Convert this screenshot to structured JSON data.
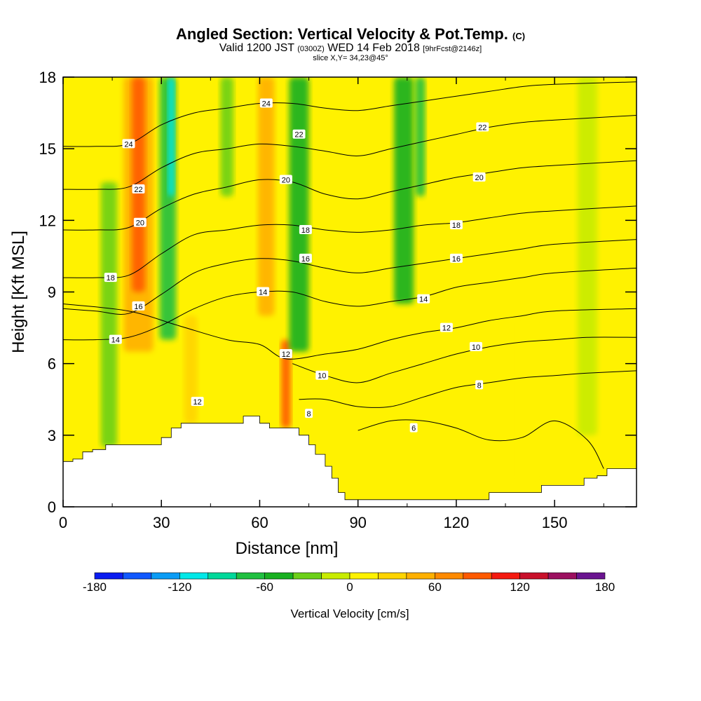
{
  "header": {
    "title": "Angled Section: Vertical Velocity & Pot.Temp.",
    "title_unit": "(C)",
    "valid_prefix": "Valid 1200 JST",
    "valid_utc": "(0300Z)",
    "valid_date": "WED 14 Feb 2018",
    "forecast": "[9hrFcst@2146z]",
    "slice": "slice X,Y= 34,23@45°"
  },
  "chart_data": {
    "type": "heatmap",
    "xlabel": "Distance [nm]",
    "ylabel": "Height [Kft MSL]",
    "xlim": [
      0,
      175
    ],
    "ylim": [
      0,
      18
    ],
    "x_ticks": [
      0,
      30,
      60,
      90,
      120,
      150
    ],
    "y_ticks": [
      0,
      3,
      6,
      9,
      12,
      15,
      18
    ],
    "grid": false,
    "colorbar": {
      "label": "Vertical Velocity [cm/s]",
      "ticks": [
        -180,
        -120,
        -60,
        0,
        60,
        120,
        180
      ],
      "bounds": [
        -180,
        180
      ],
      "colors": [
        "#0a1cf0",
        "#1058ff",
        "#0a9cf5",
        "#00e8e8",
        "#00d89a",
        "#20c040",
        "#18b020",
        "#6cd018",
        "#c8ec00",
        "#fff200",
        "#ffd400",
        "#ffb000",
        "#ff8a00",
        "#ff5a00",
        "#f41a10",
        "#c8102a",
        "#9c1060",
        "#6a1490"
      ]
    },
    "velocity_columns": [
      {
        "x": 14,
        "w": 5,
        "ybot": 2.5,
        "ytop": 13.6,
        "value": -30
      },
      {
        "x": 23,
        "w": 9,
        "ybot": 6.5,
        "ytop": 18,
        "value": 55
      },
      {
        "x": 23,
        "w": 4,
        "ybot": 9,
        "ytop": 18,
        "value": 90
      },
      {
        "x": 32,
        "w": 5,
        "ybot": 7,
        "ytop": 18,
        "value": -70
      },
      {
        "x": 33,
        "w": 2,
        "ybot": 13,
        "ytop": 18,
        "value": -110
      },
      {
        "x": 39,
        "w": 4,
        "ybot": 3.5,
        "ytop": 8,
        "value": 35
      },
      {
        "x": 50,
        "w": 4,
        "ybot": 13,
        "ytop": 18,
        "value": -35
      },
      {
        "x": 62,
        "w": 5,
        "ybot": 8,
        "ytop": 18,
        "value": 40
      },
      {
        "x": 68,
        "w": 3,
        "ybot": 3.3,
        "ytop": 7,
        "value": 80
      },
      {
        "x": 72,
        "w": 6,
        "ybot": 6.5,
        "ytop": 18,
        "value": -55
      },
      {
        "x": 104,
        "w": 6,
        "ybot": 8.5,
        "ytop": 18,
        "value": -45
      },
      {
        "x": 109,
        "w": 3,
        "ybot": 13,
        "ytop": 18,
        "value": -75
      },
      {
        "x": 120,
        "w": 6,
        "ybot": 0.5,
        "ytop": 12,
        "value": 15
      },
      {
        "x": 142,
        "w": 8,
        "ybot": 1,
        "ytop": 8,
        "value": 15
      },
      {
        "x": 160,
        "w": 6,
        "ybot": 3,
        "ytop": 18,
        "value": -15
      }
    ],
    "terrain": [
      [
        0,
        1.9
      ],
      [
        3,
        2.0
      ],
      [
        6,
        2.3
      ],
      [
        9,
        2.4
      ],
      [
        13,
        2.6
      ],
      [
        27,
        2.6
      ],
      [
        30,
        2.9
      ],
      [
        33,
        3.3
      ],
      [
        36,
        3.5
      ],
      [
        52,
        3.5
      ],
      [
        55,
        3.8
      ],
      [
        57,
        3.8
      ],
      [
        60,
        3.5
      ],
      [
        63,
        3.3
      ],
      [
        68,
        3.3
      ],
      [
        72,
        3.0
      ],
      [
        75,
        2.6
      ],
      [
        77,
        2.2
      ],
      [
        80,
        1.7
      ],
      [
        82,
        1.2
      ],
      [
        84,
        0.6
      ],
      [
        86,
        0.3
      ],
      [
        129,
        0.3
      ],
      [
        130,
        0.6
      ],
      [
        142,
        0.6
      ],
      [
        146,
        0.9
      ],
      [
        155,
        0.9
      ],
      [
        159,
        1.2
      ],
      [
        163,
        1.3
      ],
      [
        166,
        1.6
      ],
      [
        175,
        1.6
      ]
    ],
    "isentropes": [
      {
        "value": 6,
        "pts": [
          [
            90,
            3.2
          ],
          [
            100,
            3.6
          ],
          [
            110,
            3.6
          ],
          [
            120,
            3.3
          ],
          [
            130,
            2.8
          ],
          [
            140,
            2.9
          ],
          [
            150,
            3.6
          ],
          [
            160,
            2.8
          ],
          [
            165,
            1.6
          ]
        ]
      },
      {
        "value": 8,
        "pts": [
          [
            72,
            4.5
          ],
          [
            80,
            4.5
          ],
          [
            90,
            4.2
          ],
          [
            100,
            4.2
          ],
          [
            110,
            4.6
          ],
          [
            120,
            5.0
          ],
          [
            130,
            5.2
          ],
          [
            140,
            5.4
          ],
          [
            150,
            5.5
          ],
          [
            160,
            5.6
          ],
          [
            175,
            5.7
          ]
        ]
      },
      {
        "value": 10,
        "pts": [
          [
            70,
            6.0
          ],
          [
            80,
            5.5
          ],
          [
            90,
            5.2
          ],
          [
            100,
            5.6
          ],
          [
            110,
            6.0
          ],
          [
            120,
            6.4
          ],
          [
            130,
            6.7
          ],
          [
            140,
            6.9
          ],
          [
            150,
            7.0
          ],
          [
            160,
            7.1
          ],
          [
            175,
            7.1
          ]
        ]
      },
      {
        "value": 12,
        "pts": [
          [
            0,
            8.5
          ],
          [
            20,
            8.2
          ],
          [
            35,
            7.6
          ],
          [
            50,
            7.0
          ],
          [
            60,
            6.8
          ],
          [
            68,
            6.2
          ],
          [
            80,
            6.4
          ],
          [
            90,
            6.6
          ],
          [
            100,
            7.0
          ],
          [
            110,
            7.3
          ],
          [
            120,
            7.5
          ],
          [
            130,
            7.8
          ],
          [
            140,
            8.0
          ],
          [
            150,
            8.2
          ],
          [
            175,
            8.3
          ]
        ]
      },
      {
        "value": 14,
        "pts": [
          [
            0,
            7.0
          ],
          [
            10,
            7.0
          ],
          [
            20,
            7.1
          ],
          [
            30,
            7.6
          ],
          [
            40,
            8.3
          ],
          [
            50,
            8.8
          ],
          [
            60,
            9.0
          ],
          [
            70,
            9.0
          ],
          [
            80,
            8.6
          ],
          [
            90,
            8.4
          ],
          [
            100,
            8.6
          ],
          [
            110,
            8.8
          ],
          [
            120,
            9.2
          ],
          [
            130,
            9.4
          ],
          [
            140,
            9.6
          ],
          [
            150,
            9.8
          ],
          [
            175,
            10.0
          ]
        ]
      },
      {
        "value": 16,
        "pts": [
          [
            0,
            8.3
          ],
          [
            10,
            8.2
          ],
          [
            20,
            8.1
          ],
          [
            30,
            8.9
          ],
          [
            40,
            9.8
          ],
          [
            50,
            10.2
          ],
          [
            60,
            10.4
          ],
          [
            70,
            10.3
          ],
          [
            80,
            10.0
          ],
          [
            90,
            9.8
          ],
          [
            100,
            10.0
          ],
          [
            110,
            10.2
          ],
          [
            120,
            10.4
          ],
          [
            130,
            10.6
          ],
          [
            140,
            10.8
          ],
          [
            150,
            11.0
          ],
          [
            175,
            11.2
          ]
        ]
      },
      {
        "value": 18,
        "pts": [
          [
            0,
            9.6
          ],
          [
            10,
            9.6
          ],
          [
            20,
            9.7
          ],
          [
            30,
            10.6
          ],
          [
            40,
            11.4
          ],
          [
            50,
            11.6
          ],
          [
            60,
            11.8
          ],
          [
            70,
            11.8
          ],
          [
            80,
            11.6
          ],
          [
            90,
            11.5
          ],
          [
            100,
            11.6
          ],
          [
            110,
            11.8
          ],
          [
            120,
            11.9
          ],
          [
            130,
            12.1
          ],
          [
            140,
            12.3
          ],
          [
            150,
            12.4
          ],
          [
            175,
            12.6
          ]
        ]
      },
      {
        "value": 20,
        "pts": [
          [
            0,
            11.6
          ],
          [
            10,
            11.6
          ],
          [
            20,
            11.7
          ],
          [
            30,
            12.5
          ],
          [
            40,
            13.1
          ],
          [
            50,
            13.4
          ],
          [
            60,
            13.7
          ],
          [
            70,
            13.6
          ],
          [
            80,
            13.1
          ],
          [
            90,
            12.9
          ],
          [
            100,
            13.2
          ],
          [
            110,
            13.5
          ],
          [
            120,
            13.8
          ],
          [
            130,
            14.0
          ],
          [
            140,
            14.2
          ],
          [
            150,
            14.3
          ],
          [
            175,
            14.5
          ]
        ]
      },
      {
        "value": 22,
        "pts": [
          [
            0,
            13.3
          ],
          [
            10,
            13.3
          ],
          [
            20,
            13.4
          ],
          [
            30,
            14.2
          ],
          [
            40,
            14.8
          ],
          [
            50,
            15.0
          ],
          [
            60,
            15.2
          ],
          [
            70,
            15.1
          ],
          [
            80,
            14.9
          ],
          [
            90,
            14.7
          ],
          [
            100,
            15.0
          ],
          [
            110,
            15.3
          ],
          [
            120,
            15.6
          ],
          [
            130,
            15.9
          ],
          [
            140,
            16.1
          ],
          [
            150,
            16.2
          ],
          [
            175,
            16.4
          ]
        ]
      },
      {
        "value": 24,
        "pts": [
          [
            0,
            15.1
          ],
          [
            10,
            15.1
          ],
          [
            20,
            15.2
          ],
          [
            30,
            16.0
          ],
          [
            40,
            16.5
          ],
          [
            50,
            16.7
          ],
          [
            60,
            16.9
          ],
          [
            70,
            16.9
          ],
          [
            80,
            16.7
          ],
          [
            90,
            16.6
          ],
          [
            100,
            16.8
          ],
          [
            110,
            17.0
          ],
          [
            120,
            17.2
          ],
          [
            130,
            17.4
          ],
          [
            140,
            17.6
          ],
          [
            150,
            17.7
          ],
          [
            175,
            17.8
          ]
        ]
      }
    ],
    "contour_labels": [
      {
        "text": "24",
        "x": 20,
        "y": 15.2
      },
      {
        "text": "22",
        "x": 23,
        "y": 13.3
      },
      {
        "text": "20",
        "x": 23.5,
        "y": 11.9
      },
      {
        "text": "18",
        "x": 14.5,
        "y": 9.6
      },
      {
        "text": "16",
        "x": 23,
        "y": 8.4
      },
      {
        "text": "14",
        "x": 16,
        "y": 7.0
      },
      {
        "text": "24",
        "x": 62,
        "y": 16.9
      },
      {
        "text": "22",
        "x": 72,
        "y": 15.6
      },
      {
        "text": "20",
        "x": 68,
        "y": 13.7
      },
      {
        "text": "18",
        "x": 74,
        "y": 11.6
      },
      {
        "text": "16",
        "x": 74,
        "y": 10.4
      },
      {
        "text": "14",
        "x": 61,
        "y": 9.0
      },
      {
        "text": "12",
        "x": 68,
        "y": 6.4
      },
      {
        "text": "10",
        "x": 79,
        "y": 5.5
      },
      {
        "text": "8",
        "x": 75,
        "y": 3.9
      },
      {
        "text": "12",
        "x": 41,
        "y": 4.4
      },
      {
        "text": "22",
        "x": 128,
        "y": 15.9
      },
      {
        "text": "20",
        "x": 127,
        "y": 13.8
      },
      {
        "text": "18",
        "x": 120,
        "y": 11.8
      },
      {
        "text": "16",
        "x": 120,
        "y": 10.4
      },
      {
        "text": "14",
        "x": 110,
        "y": 8.7
      },
      {
        "text": "12",
        "x": 117,
        "y": 7.5
      },
      {
        "text": "10",
        "x": 126,
        "y": 6.7
      },
      {
        "text": "8",
        "x": 127,
        "y": 5.1
      },
      {
        "text": "6",
        "x": 107,
        "y": 3.3
      }
    ]
  }
}
